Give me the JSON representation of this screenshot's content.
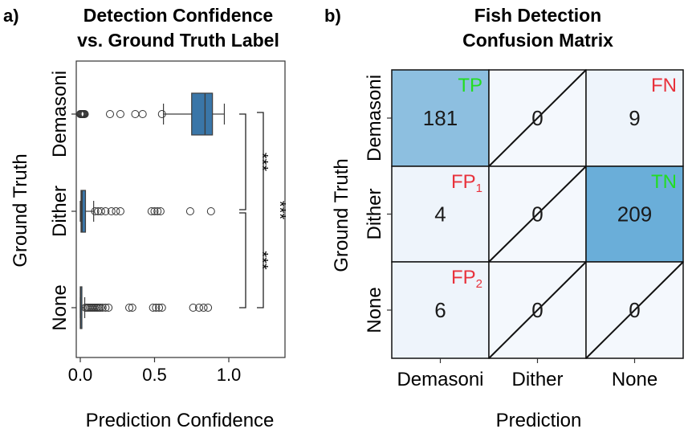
{
  "chart_data": [
    {
      "panel_label": "a)",
      "type": "boxplot",
      "title_lines": [
        "Detection Confidence",
        "vs. Ground Truth Label"
      ],
      "xlabel": "Prediction Confidence",
      "ylabel": "Ground Truth",
      "xlim": [
        0.0,
        1.35
      ],
      "xticks": [
        0.0,
        0.5,
        1.0
      ],
      "xtick_labels": [
        "0.0",
        "0.5",
        "1.0"
      ],
      "categories": [
        "Demasoni",
        "Dither",
        "None"
      ],
      "box_color": "#3a76a8",
      "boxes": [
        {
          "name": "Demasoni",
          "whisker_low": 0.56,
          "q1": 0.75,
          "median": 0.84,
          "q3": 0.89,
          "whisker_high": 0.97,
          "outliers": [
            0.0,
            0.005,
            0.01,
            0.015,
            0.02,
            0.025,
            0.03,
            0.2,
            0.27,
            0.37,
            0.42,
            0.55
          ]
        },
        {
          "name": "Dither",
          "whisker_low": 0.0,
          "q1": 0.005,
          "median": 0.012,
          "q3": 0.035,
          "whisker_high": 0.09,
          "outliers": [
            0.1,
            0.12,
            0.14,
            0.17,
            0.21,
            0.24,
            0.27,
            0.48,
            0.5,
            0.52,
            0.54,
            0.74,
            0.88
          ]
        },
        {
          "name": "None",
          "whisker_low": 0.0,
          "q1": 0.0,
          "median": 0.002,
          "q3": 0.005,
          "whisker_high": 0.03,
          "outliers": [
            0.035,
            0.045,
            0.055,
            0.065,
            0.075,
            0.085,
            0.095,
            0.105,
            0.115,
            0.125,
            0.135,
            0.15,
            0.17,
            0.19,
            0.33,
            0.35,
            0.49,
            0.51,
            0.53,
            0.55,
            0.76,
            0.8,
            0.83,
            0.86
          ]
        }
      ],
      "significance": [
        {
          "pair": [
            "Demasoni",
            "Dither"
          ],
          "label": "***"
        },
        {
          "pair": [
            "Dither",
            "None"
          ],
          "label": "***"
        },
        {
          "pair": [
            "Demasoni",
            "None"
          ],
          "label": "***"
        }
      ]
    },
    {
      "panel_label": "b)",
      "type": "heatmap",
      "title_lines": [
        "Fish Detection",
        "Confusion Matrix"
      ],
      "xlabel": "Prediction",
      "ylabel": "Ground Truth",
      "x_categories": [
        "Demasoni",
        "Dither",
        "None"
      ],
      "y_categories": [
        "Demasoni",
        "Dither",
        "None"
      ],
      "values": [
        [
          181,
          0,
          9
        ],
        [
          4,
          0,
          209
        ],
        [
          6,
          0,
          0
        ]
      ],
      "value_labels": [
        [
          "181",
          "0",
          "9"
        ],
        [
          "4",
          "0",
          "209"
        ],
        [
          "6",
          "0",
          "0"
        ]
      ],
      "diagonal_slash_cells": [
        [
          0,
          1
        ],
        [
          1,
          1
        ],
        [
          2,
          1
        ],
        [
          2,
          2
        ]
      ],
      "cell_tags": [
        {
          "row": 0,
          "col": 0,
          "text": "TP",
          "sub": "",
          "color": "#22dd22"
        },
        {
          "row": 0,
          "col": 2,
          "text": "FN",
          "sub": "",
          "color": "#e8323c"
        },
        {
          "row": 1,
          "col": 0,
          "text": "FP",
          "sub": "1",
          "color": "#e8323c"
        },
        {
          "row": 1,
          "col": 2,
          "text": "TN",
          "sub": "",
          "color": "#22dd22"
        },
        {
          "row": 2,
          "col": 0,
          "text": "FP",
          "sub": "2",
          "color": "#e8323c"
        }
      ],
      "color_low": "#f4f8fd",
      "color_mid": "#8dbfe0",
      "color_high": "#6aaed9"
    }
  ]
}
